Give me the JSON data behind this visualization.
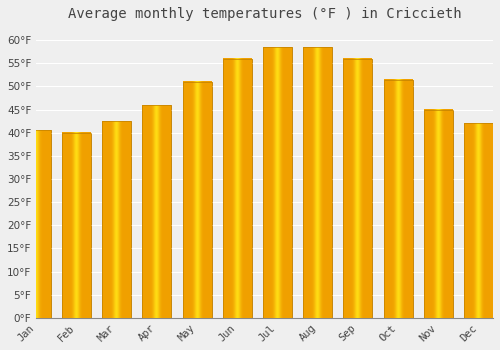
{
  "title": "Average monthly temperatures (°F ) in Criccieth",
  "months": [
    "Jan",
    "Feb",
    "Mar",
    "Apr",
    "May",
    "Jun",
    "Jul",
    "Aug",
    "Sep",
    "Oct",
    "Nov",
    "Dec"
  ],
  "values": [
    40.5,
    40.0,
    42.5,
    46.0,
    51.0,
    56.0,
    58.5,
    58.5,
    56.0,
    51.5,
    45.0,
    42.0
  ],
  "bar_color_center": "#FFD700",
  "bar_color_edge": "#F0A000",
  "background_color": "#EFEFEF",
  "plot_bg_color": "#EFEFEF",
  "grid_color": "#FFFFFF",
  "text_color": "#444444",
  "axis_color": "#888888",
  "ylim": [
    0,
    63
  ],
  "yticks": [
    0,
    5,
    10,
    15,
    20,
    25,
    30,
    35,
    40,
    45,
    50,
    55,
    60
  ],
  "title_fontsize": 10,
  "tick_fontsize": 7.5,
  "bar_width": 0.72
}
